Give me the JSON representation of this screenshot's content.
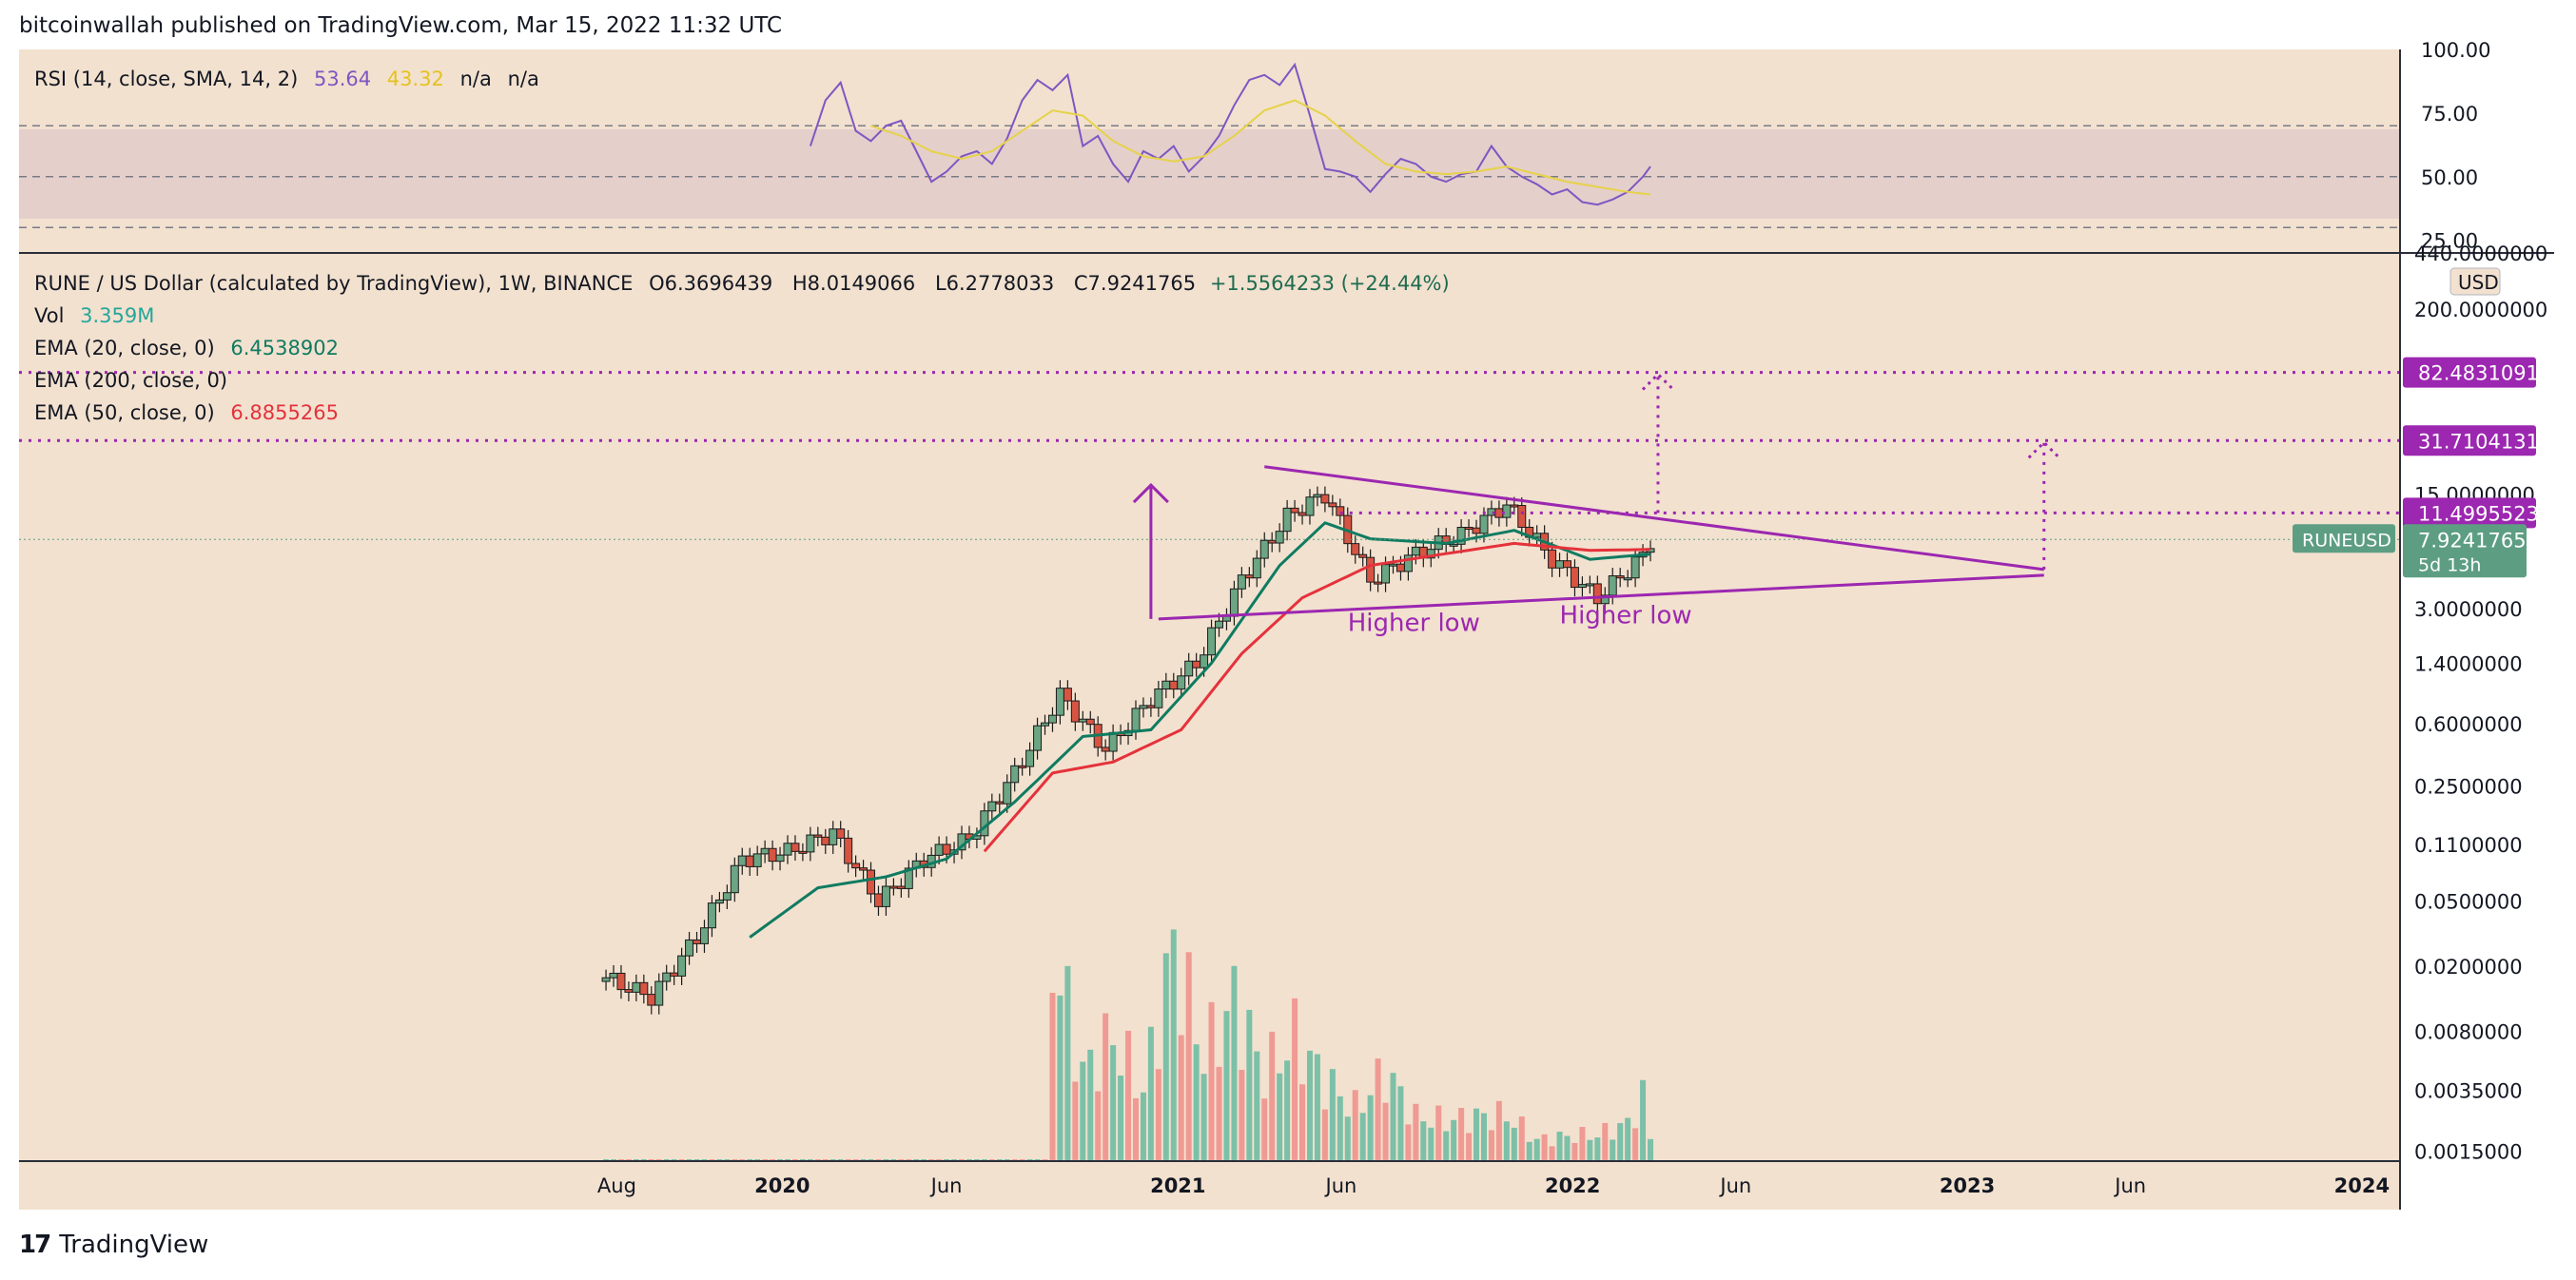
{
  "header": {
    "published": "bitcoinwallah published on TradingView.com, Mar 15, 2022 11:32 UTC"
  },
  "rsi_legend": {
    "label": "RSI (14, close, SMA, 14, 2)",
    "rsi_value": "53.64",
    "sma_value": "43.32",
    "na1": "n/a",
    "na2": "n/a"
  },
  "main_legend": {
    "symbol": "RUNE / US Dollar (calculated by TradingView), 1W, BINANCE",
    "open": "O6.3696439",
    "high": "H8.0149066",
    "low": "L6.2778033",
    "close": "C7.9241765",
    "change": "+1.5564233 (+24.44%)",
    "vol_label": "Vol",
    "vol_value": "3.359M",
    "ema20_label": "EMA (20, close, 0)",
    "ema20_value": "6.4538902",
    "ema200_label": "EMA (200, close, 0)",
    "ema50_label": "EMA (50, close, 0)",
    "ema50_value": "6.8855265"
  },
  "footer": {
    "brand": "TradingView",
    "logo_text": "17"
  },
  "colors": {
    "background": "#f2e1cf",
    "rsi_band": "#e4cfcb",
    "up": "#6ba583",
    "down": "#d75442",
    "vol_up": "#7cc0a8",
    "vol_down": "#ef9a93",
    "ema20": "#0f7b61",
    "ema50": "#e5323b",
    "rsi_line": "#7e57c2",
    "rsi_sma": "#e6d24a",
    "annotation": "#9c27b0",
    "current_price_bg": "#5d9e83"
  },
  "chart_data": [
    {
      "type": "line",
      "title": "RSI (14, close, SMA, 14, 2)",
      "y_ticks": [
        "100.00",
        "75.00",
        "50.00",
        "25.00"
      ],
      "ylim": [
        20,
        100
      ],
      "bands": [
        30,
        50,
        70
      ],
      "series": [
        {
          "name": "RSI",
          "x": [
            "2020-01-27",
            "2020-02-10",
            "2020-02-24",
            "2020-03-09",
            "2020-03-23",
            "2020-04-06",
            "2020-04-20",
            "2020-05-04",
            "2020-05-18",
            "2020-06-01",
            "2020-06-15",
            "2020-06-29",
            "2020-07-13",
            "2020-07-27",
            "2020-08-10",
            "2020-08-24",
            "2020-09-07",
            "2020-09-21",
            "2020-10-05",
            "2020-10-19",
            "2020-11-02",
            "2020-11-16",
            "2020-11-30",
            "2020-12-14",
            "2020-12-28",
            "2021-01-11",
            "2021-01-25",
            "2021-02-08",
            "2021-02-22",
            "2021-03-08",
            "2021-03-22",
            "2021-04-05",
            "2021-04-19",
            "2021-05-03",
            "2021-05-17",
            "2021-05-31",
            "2021-06-14",
            "2021-06-28",
            "2021-07-12",
            "2021-07-26",
            "2021-08-09",
            "2021-08-23",
            "2021-09-06",
            "2021-09-20",
            "2021-10-04",
            "2021-10-18",
            "2021-11-01",
            "2021-11-15",
            "2021-11-29",
            "2021-12-13",
            "2021-12-27",
            "2022-01-10",
            "2022-01-24",
            "2022-02-07",
            "2022-02-21",
            "2022-03-07",
            "2022-03-14"
          ],
          "values": [
            62,
            80,
            87,
            68,
            64,
            70,
            72,
            60,
            48,
            52,
            58,
            60,
            55,
            65,
            80,
            88,
            84,
            90,
            62,
            66,
            55,
            48,
            60,
            57,
            62,
            52,
            58,
            66,
            78,
            88,
            90,
            86,
            94,
            74,
            53,
            52,
            50,
            44,
            51,
            57,
            55,
            50,
            48,
            51,
            52,
            62,
            54,
            50,
            47,
            43,
            45,
            40,
            39,
            41,
            44,
            50,
            54
          ]
        },
        {
          "name": "RSI-based MA",
          "x": [
            "2020-03-23",
            "2020-04-20",
            "2020-05-18",
            "2020-06-15",
            "2020-07-13",
            "2020-08-10",
            "2020-09-07",
            "2020-10-05",
            "2020-11-02",
            "2020-11-30",
            "2020-12-28",
            "2021-01-25",
            "2021-02-22",
            "2021-03-22",
            "2021-04-19",
            "2021-05-17",
            "2021-06-14",
            "2021-07-12",
            "2021-08-09",
            "2021-09-06",
            "2021-10-04",
            "2021-11-01",
            "2021-11-29",
            "2021-12-27",
            "2022-01-24",
            "2022-02-21",
            "2022-03-14"
          ],
          "values": [
            70,
            66,
            60,
            57,
            60,
            68,
            76,
            74,
            64,
            58,
            56,
            58,
            66,
            76,
            80,
            74,
            64,
            55,
            52,
            51,
            52,
            54,
            51,
            48,
            46,
            44,
            43
          ]
        }
      ]
    },
    {
      "type": "candlestick",
      "title": "RUNE / US Dollar (calculated by TradingView), 1W, BINANCE",
      "y_scale": "log",
      "ylim": [
        0.0013,
        440
      ],
      "y_ticks": [
        "440.0000000",
        "200.0000000",
        "15.0000000",
        "3.0000000",
        "1.4000000",
        "0.6000000",
        "0.2500000",
        "0.1100000",
        "0.0500000",
        "0.0200000",
        "0.0080000",
        "0.0035000",
        "0.0015000"
      ],
      "x_ticks": [
        "Aug",
        "2020",
        "Jun",
        "2021",
        "Jun",
        "2022",
        "Jun",
        "2023",
        "Jun",
        "2024"
      ],
      "currency": "USD",
      "price_labels": [
        "82.4831091",
        "31.7104131",
        "11.4995523",
        "7.9241765"
      ],
      "current_symbol": "RUNEUSD",
      "countdown": "5d 13h",
      "annotations": [
        "Higher low",
        "Higher low"
      ],
      "ohlc_anchors": {
        "dates": [
          "2019-07-22",
          "2019-09-02",
          "2019-10-14",
          "2019-11-25",
          "2020-01-06",
          "2020-02-17",
          "2020-03-30",
          "2020-05-11",
          "2020-06-22",
          "2020-08-03",
          "2020-09-14",
          "2020-10-26",
          "2020-12-07",
          "2021-01-18",
          "2021-03-01",
          "2021-04-12",
          "2021-05-17",
          "2021-06-28",
          "2021-08-09",
          "2021-09-20",
          "2021-11-01",
          "2021-12-13",
          "2022-01-24",
          "2022-03-07",
          "2022-03-14"
        ],
        "close": [
          0.017,
          0.013,
          0.03,
          0.09,
          0.1,
          0.13,
          0.05,
          0.09,
          0.12,
          0.3,
          0.9,
          0.42,
          0.85,
          1.4,
          4.5,
          11,
          15,
          4.5,
          6.5,
          8.5,
          13,
          6,
          3.5,
          6.3,
          7.92
        ]
      },
      "volume_anchors": {
        "dates": [
          "2019-07-22",
          "2020-08-31",
          "2020-09-07",
          "2020-10-05",
          "2020-11-02",
          "2020-11-30",
          "2020-12-28",
          "2021-01-25",
          "2021-02-22",
          "2021-03-22",
          "2021-04-19",
          "2021-05-17",
          "2021-06-14",
          "2021-07-12",
          "2021-08-09",
          "2021-09-06",
          "2021-10-04",
          "2021-11-01",
          "2021-11-29",
          "2021-12-27",
          "2022-01-24",
          "2022-02-21",
          "2022-03-07",
          "2022-03-14"
        ],
        "values": [
          0.02,
          0.02,
          12,
          5,
          7,
          4,
          12,
          6,
          9,
          5,
          7,
          4.5,
          3,
          5,
          2.5,
          2.3,
          2.5,
          2.6,
          1.2,
          1.4,
          1.5,
          2.1,
          3.6,
          1.3
        ]
      },
      "ema20_anchors": {
        "dates": [
          "2019-12-02",
          "2020-02-03",
          "2020-04-06",
          "2020-06-01",
          "2020-08-03",
          "2020-10-05",
          "2020-12-07",
          "2021-02-01",
          "2021-04-05",
          "2021-05-17",
          "2021-06-28",
          "2021-09-06",
          "2021-11-08",
          "2022-01-17",
          "2022-03-14"
        ],
        "values": [
          0.03,
          0.06,
          0.07,
          0.09,
          0.2,
          0.5,
          0.55,
          1.4,
          5.5,
          10,
          8,
          7.5,
          9,
          6,
          6.45
        ]
      },
      "ema50_anchors": {
        "dates": [
          "2020-07-06",
          "2020-09-07",
          "2020-11-02",
          "2021-01-04",
          "2021-03-01",
          "2021-04-26",
          "2021-06-28",
          "2021-09-06",
          "2021-11-08",
          "2022-01-17",
          "2022-03-14"
        ],
        "values": [
          0.1,
          0.3,
          0.35,
          0.55,
          1.6,
          3.5,
          5.5,
          6.5,
          7.5,
          6.8,
          6.89
        ]
      }
    }
  ]
}
